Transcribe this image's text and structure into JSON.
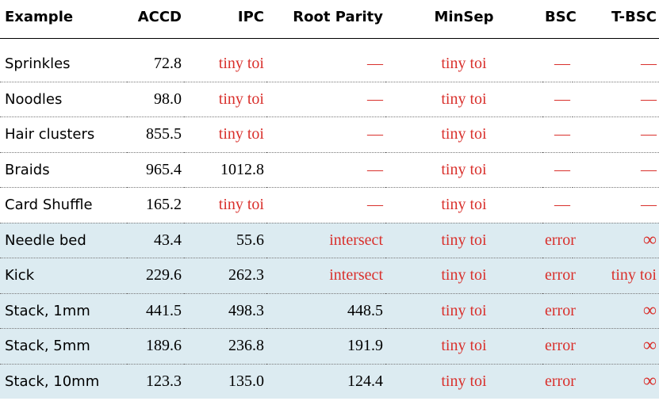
{
  "table": {
    "header": [
      "Example",
      "ACCD",
      "IPC",
      "Root Parity",
      "MinSep",
      "BSC",
      "T-BSC"
    ],
    "rows": [
      [
        "Sprinkles",
        "72.8",
        "tiny toi",
        "—",
        "tiny toi",
        "—",
        "—"
      ],
      [
        "Noodles",
        "98.0",
        "tiny toi",
        "—",
        "tiny toi",
        "—",
        "—"
      ],
      [
        "Hair clusters",
        "855.5",
        "tiny toi",
        "—",
        "tiny toi",
        "—",
        "—"
      ],
      [
        "Braids",
        "965.4",
        "1012.8",
        "—",
        "tiny toi",
        "—",
        "—"
      ],
      [
        "Card Shuffle",
        "165.2",
        "tiny toi",
        "—",
        "tiny toi",
        "—",
        "—"
      ],
      [
        "Needle bed",
        "43.4",
        "55.6",
        "intersect",
        "tiny toi",
        "error",
        "∞"
      ],
      [
        "Kick",
        "229.6",
        "262.3",
        "intersect",
        "tiny toi",
        "error",
        "tiny toi"
      ],
      [
        "Stack, 1mm",
        "441.5",
        "498.3",
        "448.5",
        "tiny toi",
        "error",
        "∞"
      ],
      [
        "Stack, 5mm",
        "189.6",
        "236.8",
        "191.9",
        "tiny toi",
        "error",
        "∞"
      ],
      [
        "Stack, 10mm",
        "123.3",
        "135.0",
        "124.4",
        "tiny toi",
        "error",
        "∞"
      ]
    ]
  }
}
